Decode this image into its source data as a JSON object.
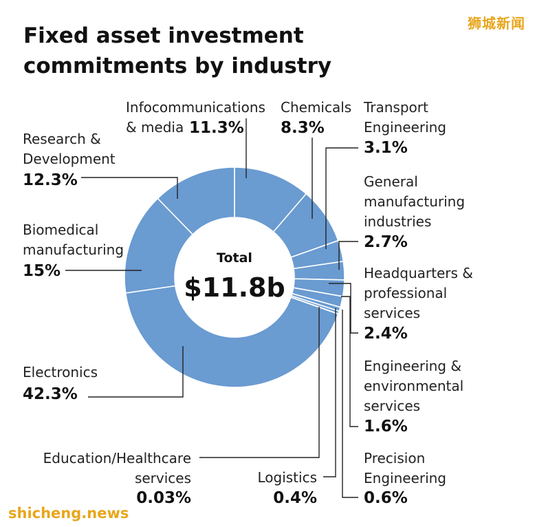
{
  "watermark_top": "狮城新闻",
  "watermark_bottom": "shicheng.news",
  "colors": {
    "slice": "#6a9bd1",
    "divider": "#ffffff",
    "leader": "#222222"
  },
  "chart_data": {
    "type": "pie",
    "title": "Fixed asset investment commitments by industry",
    "center_label": "Total",
    "center_value": "$11.8b",
    "unit": "%",
    "slices": [
      {
        "name": "Infocommunications & media",
        "value": 11.3,
        "value_label": "11.3%"
      },
      {
        "name": "Chemicals",
        "value": 8.3,
        "value_label": "8.3%"
      },
      {
        "name": "Transport Engineering",
        "value": 3.1,
        "value_label": "3.1%"
      },
      {
        "name": "General manufacturing industries",
        "value": 2.7,
        "value_label": "2.7%"
      },
      {
        "name": "Headquarters & professional services",
        "value": 2.4,
        "value_label": "2.4%"
      },
      {
        "name": "Engineering & environmental services",
        "value": 1.6,
        "value_label": "1.6%"
      },
      {
        "name": "Precision Engineering",
        "value": 0.6,
        "value_label": "0.6%"
      },
      {
        "name": "Logistics",
        "value": 0.4,
        "value_label": "0.4%"
      },
      {
        "name": "Education/Healthcare services",
        "value": 0.03,
        "value_label": "0.03%"
      },
      {
        "name": "Electronics",
        "value": 42.3,
        "value_label": "42.3%"
      },
      {
        "name": "Biomedical manufacturing",
        "value": 15,
        "value_label": "15%"
      },
      {
        "name": "Research & Development",
        "value": 12.3,
        "value_label": "12.3%"
      }
    ]
  }
}
